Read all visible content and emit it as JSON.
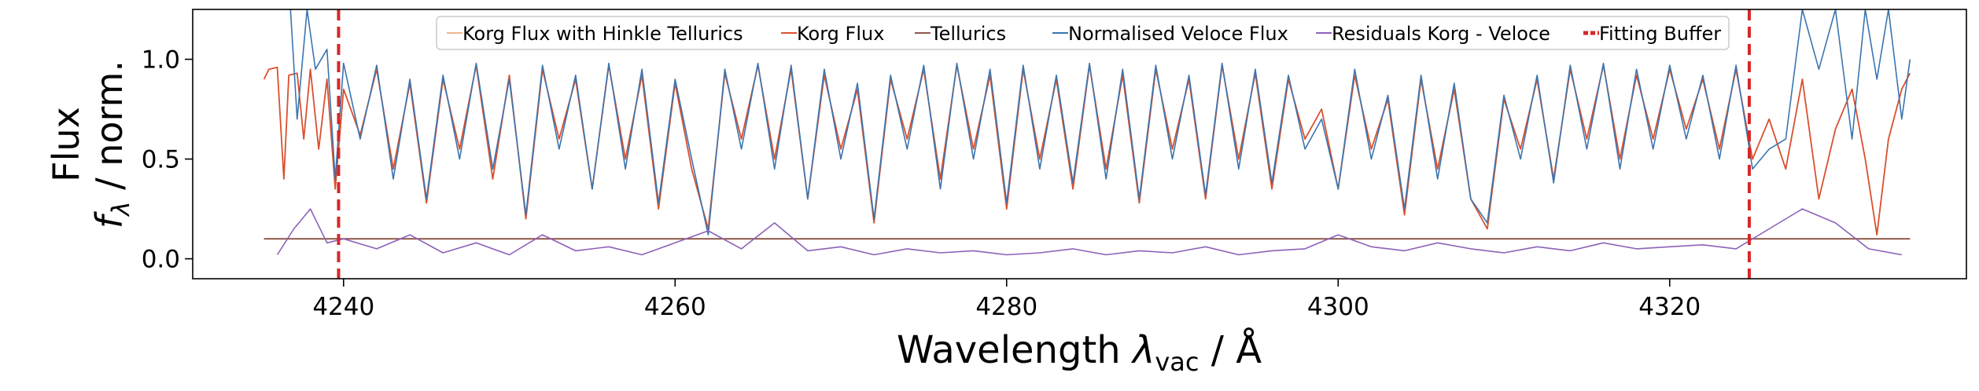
{
  "chart_data": {
    "type": "line",
    "xlabel": "Wavelength $\\lambda_\\mathrm{vac}$ / Å",
    "ylabel_line1": "Flux",
    "ylabel_line2": "$f_\\lambda$ / norm.",
    "xlim": [
      4230.9,
      4337.9
    ],
    "ylim": [
      -0.1,
      1.25
    ],
    "x_ticks": [
      4240,
      4260,
      4280,
      4300,
      4320
    ],
    "y_ticks": [
      0.0,
      0.5,
      1.0
    ],
    "x_tick_labels": [
      "4240",
      "4260",
      "4280",
      "4300",
      "4320"
    ],
    "y_tick_labels": [
      "0.0",
      "0.5",
      "1.0"
    ],
    "legend_position": "top-center",
    "grid": false,
    "fitting_buffer_x": [
      4239.7,
      4324.8
    ],
    "series": [
      {
        "name": "Korg Flux with Hinkle Tellurics",
        "color": "#f0b58a",
        "constant": 0.1,
        "x_range": [
          4235.2,
          4334.5
        ]
      },
      {
        "name": "Korg Flux",
        "color": "#d9502f",
        "x_range": [
          4235.2,
          4334.5
        ],
        "x": [
          4235.2,
          4235.5,
          4236.0,
          4236.4,
          4236.7,
          4237.2,
          4237.6,
          4238.0,
          4238.5,
          4239.0,
          4239.5,
          4240.0,
          4241.0,
          4242.0,
          4243.0,
          4244.0,
          4245.0,
          4246.0,
          4247.0,
          4248.0,
          4249.0,
          4250.0,
          4251.0,
          4252.0,
          4253.0,
          4254.0,
          4255.0,
          4256.0,
          4257.0,
          4258.0,
          4259.0,
          4260.0,
          4261.0,
          4262.0,
          4263.0,
          4264.0,
          4265.0,
          4266.0,
          4267.0,
          4268.0,
          4269.0,
          4270.0,
          4271.0,
          4272.0,
          4273.0,
          4274.0,
          4275.0,
          4276.0,
          4277.0,
          4278.0,
          4279.0,
          4280.0,
          4281.0,
          4282.0,
          4283.0,
          4284.0,
          4285.0,
          4286.0,
          4287.0,
          4288.0,
          4289.0,
          4290.0,
          4291.0,
          4292.0,
          4293.0,
          4294.0,
          4295.0,
          4296.0,
          4297.0,
          4298.0,
          4299.0,
          4300.0,
          4301.0,
          4302.0,
          4303.0,
          4304.0,
          4305.0,
          4306.0,
          4307.0,
          4308.0,
          4309.0,
          4310.0,
          4311.0,
          4312.0,
          4313.0,
          4314.0,
          4315.0,
          4316.0,
          4317.0,
          4318.0,
          4319.0,
          4320.0,
          4321.0,
          4322.0,
          4323.0,
          4324.0,
          4325.0,
          4326.0,
          4327.0,
          4328.0,
          4329.0,
          4330.0,
          4331.0,
          4331.8,
          4332.5,
          4333.2,
          4334.0,
          4334.5
        ],
        "y": [
          0.9,
          0.95,
          0.96,
          0.4,
          0.92,
          0.93,
          0.6,
          0.95,
          0.55,
          0.9,
          0.35,
          0.85,
          0.62,
          0.95,
          0.45,
          0.88,
          0.28,
          0.9,
          0.55,
          0.97,
          0.4,
          0.92,
          0.2,
          0.95,
          0.6,
          0.9,
          0.35,
          0.97,
          0.5,
          0.92,
          0.25,
          0.88,
          0.45,
          0.15,
          0.93,
          0.6,
          0.97,
          0.5,
          0.95,
          0.3,
          0.92,
          0.55,
          0.85,
          0.18,
          0.9,
          0.6,
          0.95,
          0.4,
          0.97,
          0.55,
          0.92,
          0.25,
          0.95,
          0.5,
          0.9,
          0.35,
          0.97,
          0.45,
          0.92,
          0.28,
          0.95,
          0.55,
          0.9,
          0.3,
          0.97,
          0.5,
          0.93,
          0.35,
          0.9,
          0.6,
          0.75,
          0.35,
          0.92,
          0.55,
          0.8,
          0.22,
          0.9,
          0.45,
          0.85,
          0.3,
          0.15,
          0.8,
          0.55,
          0.9,
          0.4,
          0.95,
          0.6,
          0.97,
          0.5,
          0.92,
          0.6,
          0.95,
          0.65,
          0.9,
          0.55,
          0.95,
          0.5,
          0.7,
          0.45,
          0.9,
          0.3,
          0.65,
          0.85,
          0.5,
          0.12,
          0.6,
          0.85,
          0.93
        ]
      },
      {
        "name": "Tellurics",
        "color": "#8c564b",
        "constant": 0.1,
        "x_range": [
          4235.2,
          4334.5
        ]
      },
      {
        "name": "Normalised Veloce Flux",
        "color": "#3a75b0",
        "x_range": [
          4236.8,
          4334.5
        ],
        "x": [
          4236.8,
          4237.2,
          4237.8,
          4238.3,
          4239.0,
          4239.5,
          4240.0,
          4241.0,
          4242.0,
          4243.0,
          4244.0,
          4245.0,
          4246.0,
          4247.0,
          4248.0,
          4249.0,
          4250.0,
          4251.0,
          4252.0,
          4253.0,
          4254.0,
          4255.0,
          4256.0,
          4257.0,
          4258.0,
          4259.0,
          4260.0,
          4261.0,
          4262.0,
          4263.0,
          4264.0,
          4265.0,
          4266.0,
          4267.0,
          4268.0,
          4269.0,
          4270.0,
          4271.0,
          4272.0,
          4273.0,
          4274.0,
          4275.0,
          4276.0,
          4277.0,
          4278.0,
          4279.0,
          4280.0,
          4281.0,
          4282.0,
          4283.0,
          4284.0,
          4285.0,
          4286.0,
          4287.0,
          4288.0,
          4289.0,
          4290.0,
          4291.0,
          4292.0,
          4293.0,
          4294.0,
          4295.0,
          4296.0,
          4297.0,
          4298.0,
          4299.0,
          4300.0,
          4301.0,
          4302.0,
          4303.0,
          4304.0,
          4305.0,
          4306.0,
          4307.0,
          4308.0,
          4309.0,
          4310.0,
          4311.0,
          4312.0,
          4313.0,
          4314.0,
          4315.0,
          4316.0,
          4317.0,
          4318.0,
          4319.0,
          4320.0,
          4321.0,
          4322.0,
          4323.0,
          4324.0,
          4325.0,
          4326.0,
          4327.0,
          4328.0,
          4329.0,
          4330.0,
          4331.0,
          4331.8,
          4332.5,
          4333.2,
          4334.0,
          4334.5
        ],
        "y": [
          1.25,
          0.7,
          1.25,
          0.95,
          1.05,
          0.4,
          0.98,
          0.6,
          0.97,
          0.4,
          0.9,
          0.3,
          0.92,
          0.5,
          0.98,
          0.45,
          0.9,
          0.22,
          0.97,
          0.55,
          0.92,
          0.35,
          0.98,
          0.45,
          0.95,
          0.28,
          0.9,
          0.5,
          0.12,
          0.95,
          0.55,
          0.98,
          0.45,
          0.97,
          0.3,
          0.95,
          0.5,
          0.88,
          0.2,
          0.92,
          0.55,
          0.97,
          0.35,
          0.98,
          0.5,
          0.95,
          0.28,
          0.97,
          0.45,
          0.92,
          0.38,
          0.98,
          0.4,
          0.95,
          0.3,
          0.97,
          0.5,
          0.92,
          0.32,
          0.98,
          0.45,
          0.95,
          0.38,
          0.92,
          0.55,
          0.7,
          0.35,
          0.95,
          0.5,
          0.82,
          0.25,
          0.92,
          0.4,
          0.88,
          0.3,
          0.18,
          0.82,
          0.5,
          0.92,
          0.38,
          0.97,
          0.55,
          0.98,
          0.45,
          0.95,
          0.55,
          0.97,
          0.6,
          0.92,
          0.5,
          0.97,
          0.45,
          0.55,
          0.6,
          1.25,
          0.95,
          1.25,
          0.6,
          1.25,
          0.9,
          1.25,
          0.7,
          1.0
        ]
      },
      {
        "name": "Residuals Korg - Veloce",
        "color": "#8c62b8",
        "x_range": [
          4236.0,
          4334.5
        ],
        "x": [
          4236.0,
          4237.0,
          4238.0,
          4239.0,
          4240.0,
          4242.0,
          4244.0,
          4246.0,
          4248.0,
          4250.0,
          4252.0,
          4254.0,
          4256.0,
          4258.0,
          4260.0,
          4262.0,
          4264.0,
          4266.0,
          4268.0,
          4270.0,
          4272.0,
          4274.0,
          4276.0,
          4278.0,
          4280.0,
          4282.0,
          4284.0,
          4286.0,
          4288.0,
          4290.0,
          4292.0,
          4294.0,
          4296.0,
          4298.0,
          4300.0,
          4302.0,
          4304.0,
          4306.0,
          4308.0,
          4310.0,
          4312.0,
          4314.0,
          4316.0,
          4318.0,
          4320.0,
          4322.0,
          4324.0,
          4326.0,
          4328.0,
          4330.0,
          4332.0,
          4334.0
        ],
        "y": [
          0.02,
          0.15,
          0.25,
          0.08,
          0.1,
          0.05,
          0.12,
          0.03,
          0.08,
          0.02,
          0.12,
          0.04,
          0.06,
          0.02,
          0.08,
          0.14,
          0.05,
          0.18,
          0.04,
          0.06,
          0.02,
          0.05,
          0.03,
          0.04,
          0.02,
          0.03,
          0.05,
          0.02,
          0.04,
          0.03,
          0.06,
          0.02,
          0.04,
          0.05,
          0.12,
          0.06,
          0.04,
          0.08,
          0.05,
          0.03,
          0.06,
          0.04,
          0.08,
          0.05,
          0.06,
          0.07,
          0.05,
          0.15,
          0.25,
          0.18,
          0.05,
          0.02
        ]
      },
      {
        "name": "Fitting Buffer",
        "color": "#d62728",
        "dashed": true
      }
    ]
  }
}
